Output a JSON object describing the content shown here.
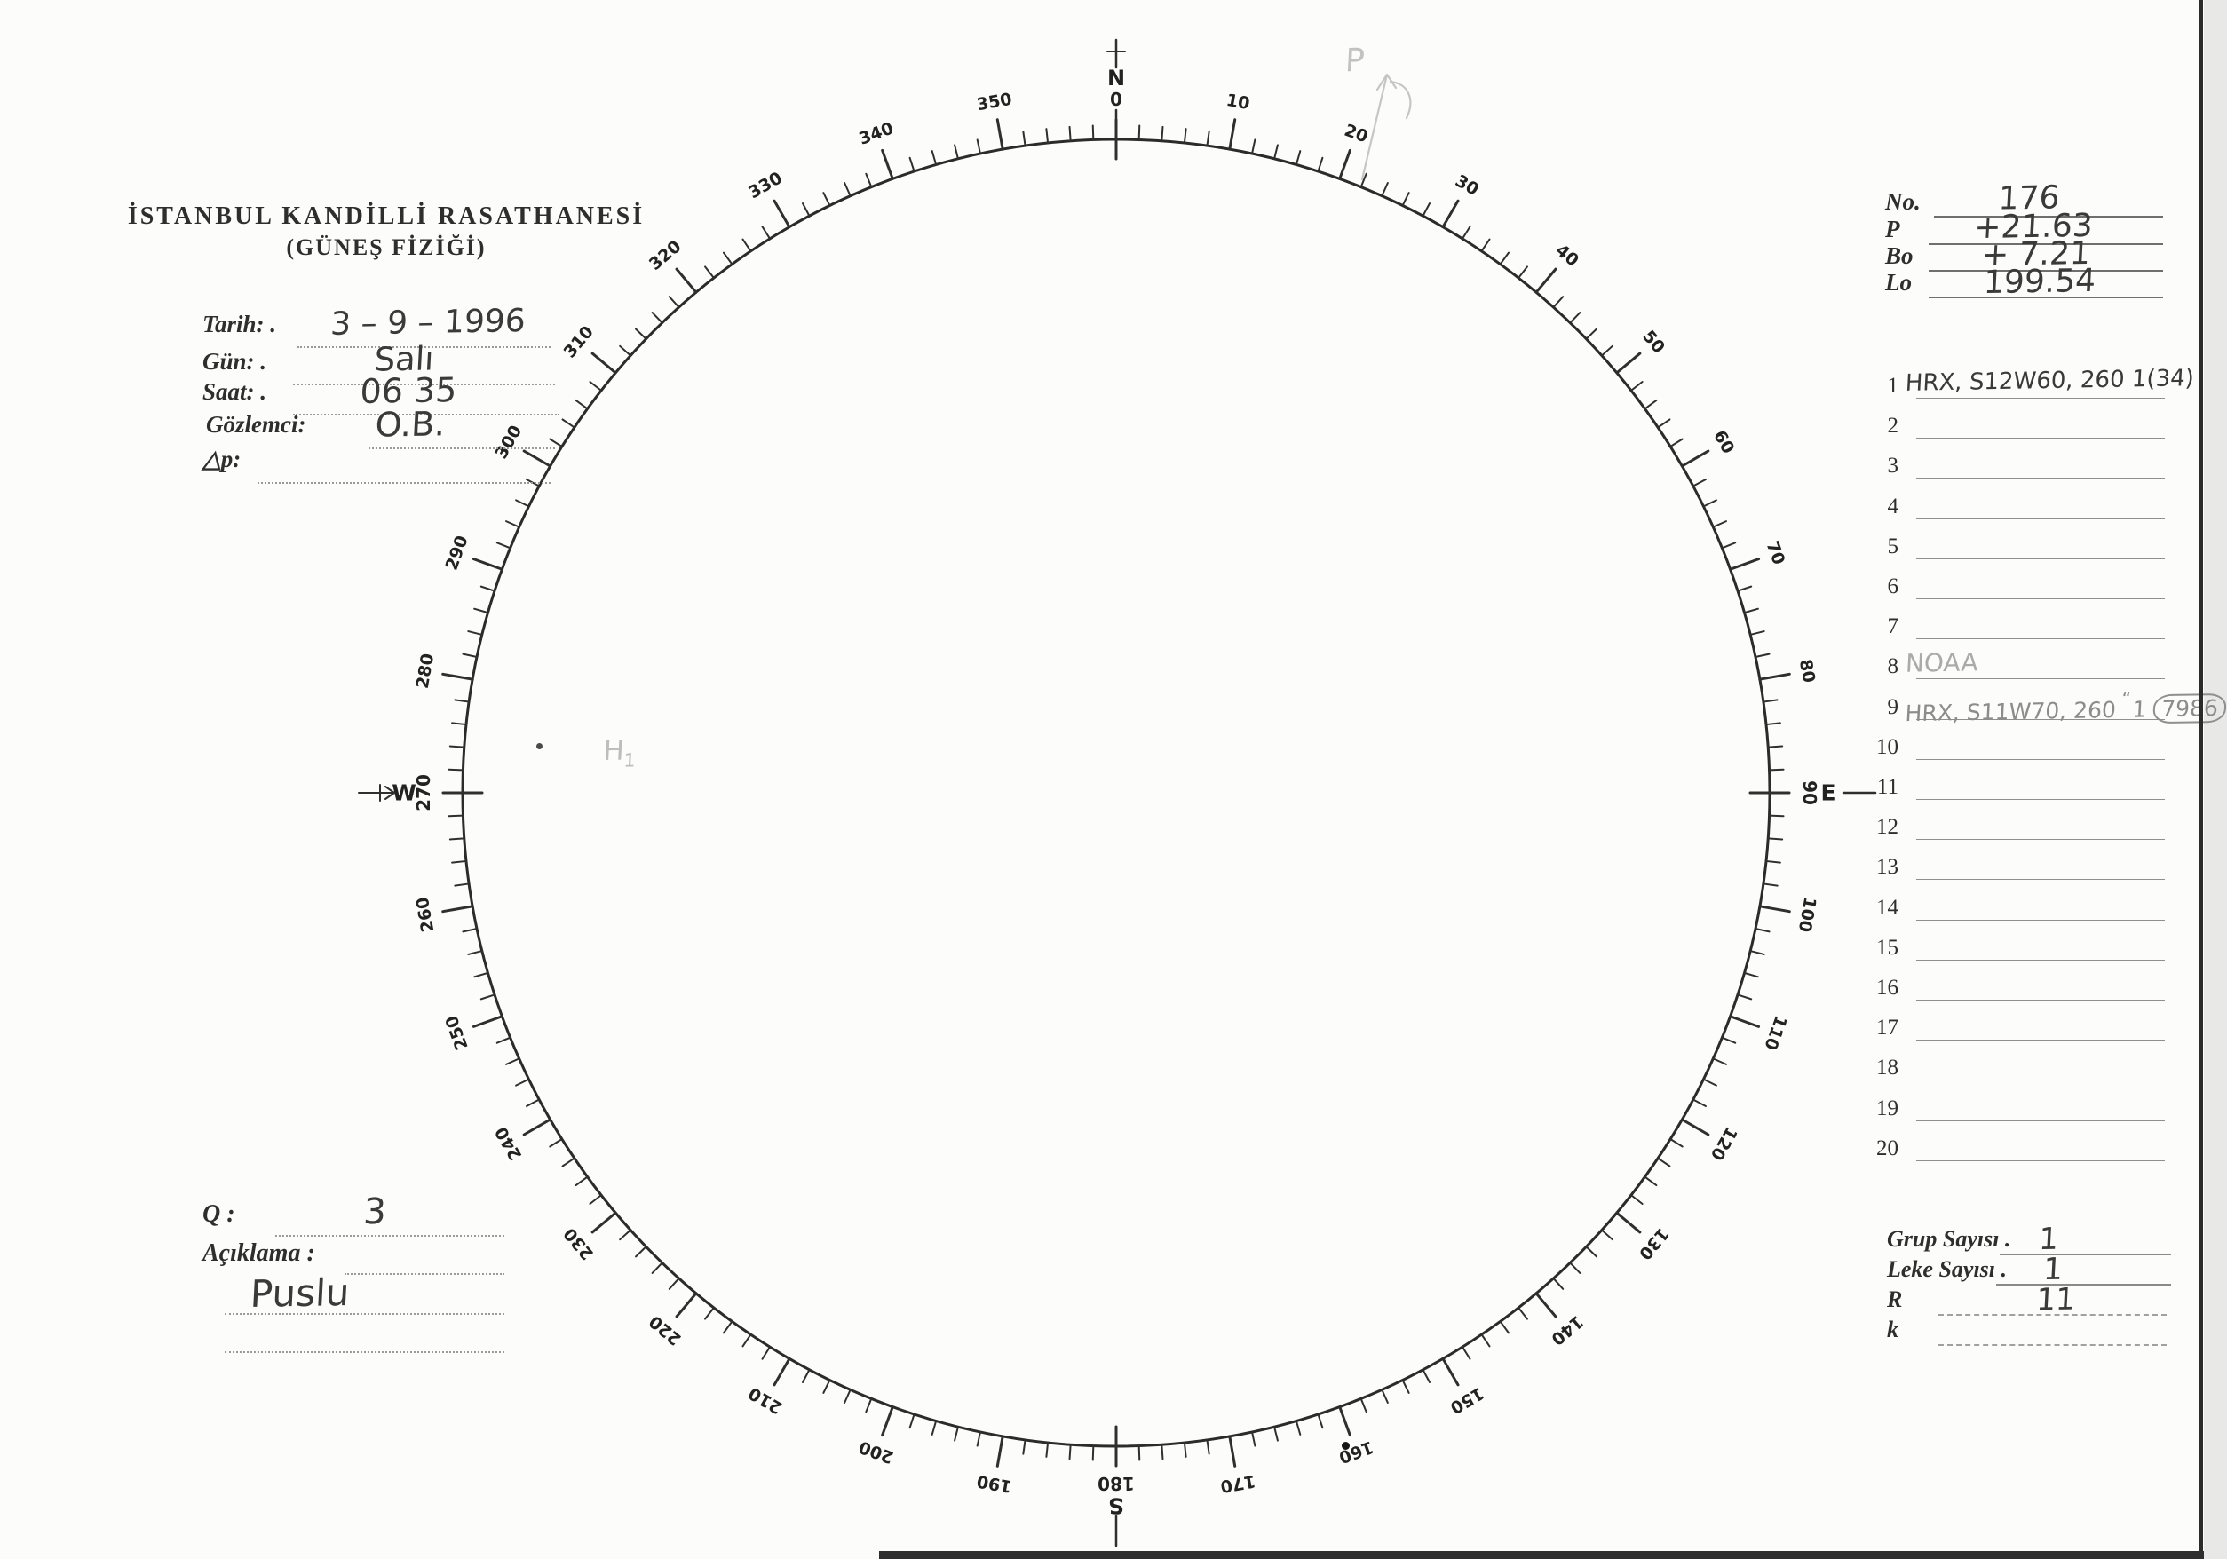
{
  "form": {
    "title_line1": "İSTANBUL KANDİLLİ RASATHANESİ",
    "title_line2": "(GÜNEŞ FİZİĞİ)"
  },
  "left_fields": [
    {
      "label": "Tarih: .",
      "value": "3 – 9 – 1996"
    },
    {
      "label": "Gün: .",
      "value": "Salı"
    },
    {
      "label": "Saat: .",
      "value": "06 35"
    },
    {
      "label": "Gözlemci:",
      "value": "O.B."
    },
    {
      "label": "△p:",
      "value": ""
    }
  ],
  "bottom_left": {
    "q_label": "Q :",
    "q_value": "3",
    "aciklama_label": "Açıklama :",
    "aciklama_value": "Puslu"
  },
  "top_right_fields": [
    {
      "label": "No.",
      "value": "176"
    },
    {
      "label": "P",
      "value": "+21.63"
    },
    {
      "label": "Bo",
      "value": "+ 7.21"
    },
    {
      "label": "Lo",
      "value": "199.54"
    }
  ],
  "observation_list": {
    "rows": [
      {
        "num": "1",
        "text": "HRX, S12W60, 260 1(34)",
        "style": "ink"
      },
      {
        "num": "2",
        "text": ""
      },
      {
        "num": "3",
        "text": ""
      },
      {
        "num": "4",
        "text": ""
      },
      {
        "num": "5",
        "text": ""
      },
      {
        "num": "6",
        "text": ""
      },
      {
        "num": "7",
        "text": ""
      },
      {
        "num": "8",
        "text": "NOAA",
        "style": "pencil"
      },
      {
        "num": "9",
        "text": "HRX, S11W70, 260",
        "ditto": "“",
        "count": "1",
        "circled": "7986",
        "style": "faint"
      },
      {
        "num": "10",
        "text": ""
      },
      {
        "num": "11",
        "text": ""
      },
      {
        "num": "12",
        "text": ""
      },
      {
        "num": "13",
        "text": ""
      },
      {
        "num": "14",
        "text": ""
      },
      {
        "num": "15",
        "text": ""
      },
      {
        "num": "16",
        "text": ""
      },
      {
        "num": "17",
        "text": ""
      },
      {
        "num": "18",
        "text": ""
      },
      {
        "num": "19",
        "text": ""
      },
      {
        "num": "20",
        "text": ""
      }
    ]
  },
  "bottom_right_fields": [
    {
      "label": "Grup Sayısı .",
      "value": "1"
    },
    {
      "label": "Leke Sayısı .",
      "value": "1"
    },
    {
      "label": "R",
      "value": "11"
    },
    {
      "label": "k",
      "value": ""
    }
  ],
  "protractor": {
    "minor_step": 2,
    "major_step": 10,
    "label_step": 10,
    "cardinal_labels": {
      "0": "N",
      "90": "E",
      "180": "S",
      "270": "W"
    },
    "cardinal_degrees": {
      "0": "0",
      "90": "90",
      "180": "180",
      "270": "270"
    }
  },
  "annotations": {
    "p_arrow_label": "P",
    "h_mark": "H",
    "h_mark_sub": "1"
  }
}
